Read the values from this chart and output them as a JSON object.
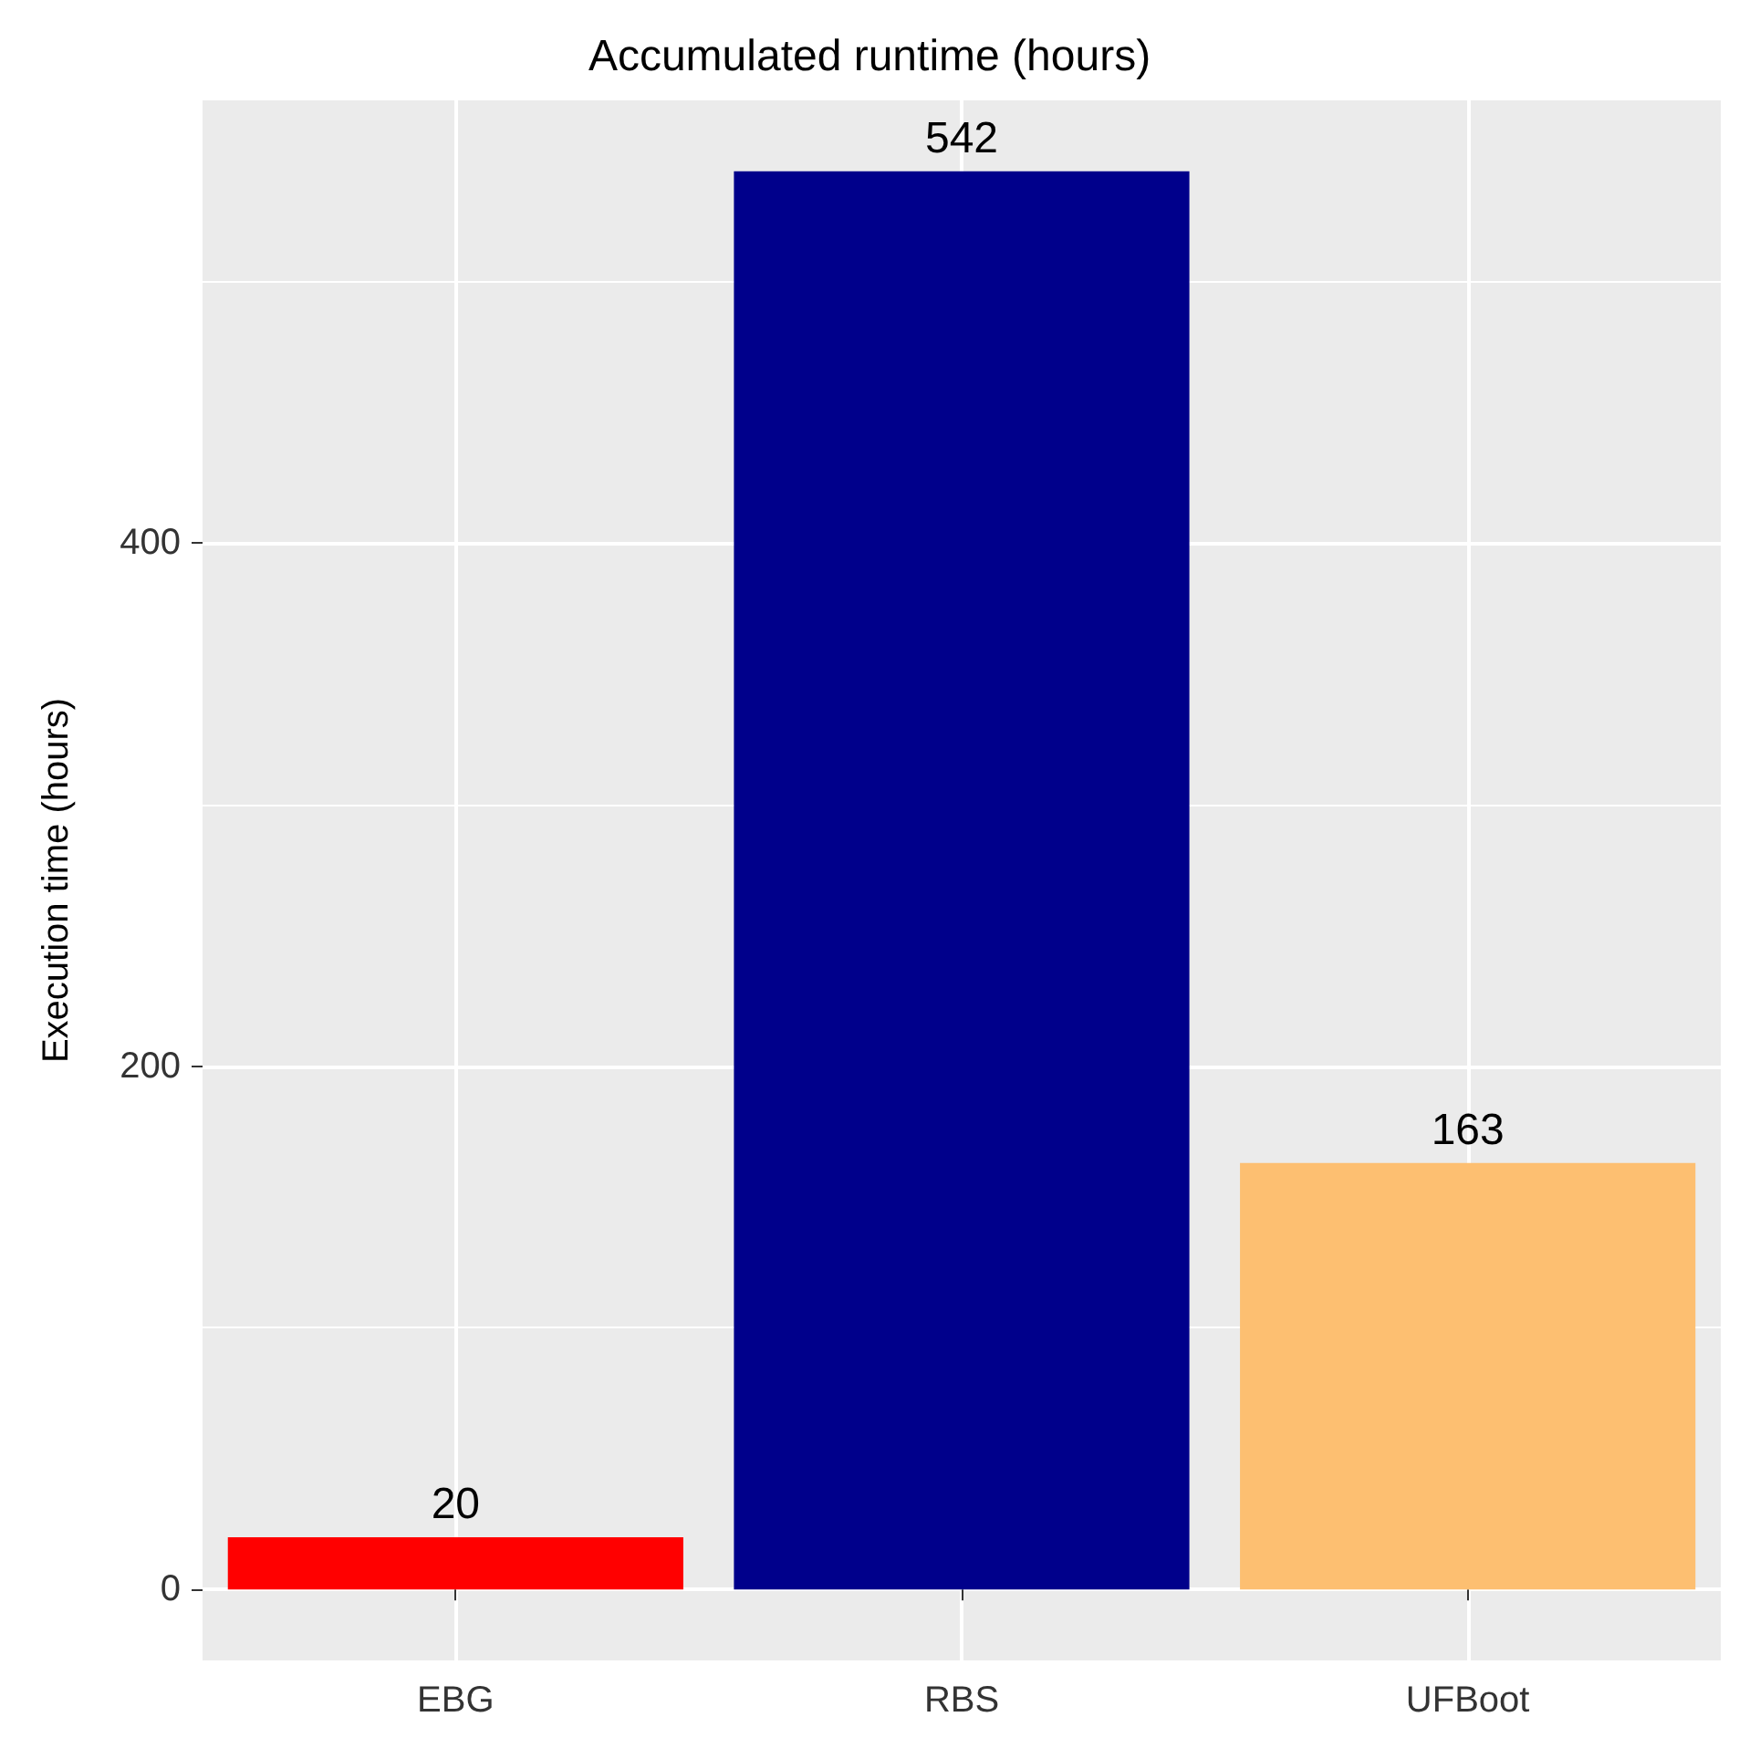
{
  "chart_data": {
    "type": "bar",
    "title": "Accumulated runtime (hours)",
    "ylabel": "Execution time (hours)",
    "categories": [
      "EBG",
      "RBS",
      "UFBoot"
    ],
    "values": [
      20,
      542,
      163
    ],
    "colors": [
      "#ff0000",
      "#00008b",
      "#fdbf71"
    ],
    "ylim": [
      -27.1,
      569.1
    ],
    "yticks": [
      0,
      {
        "value": 100,
        "label": null
      },
      200,
      {
        "value": 300,
        "label": null
      },
      400,
      {
        "value": 500,
        "label": null
      }
    ],
    "grid": true,
    "data_labels": true
  }
}
